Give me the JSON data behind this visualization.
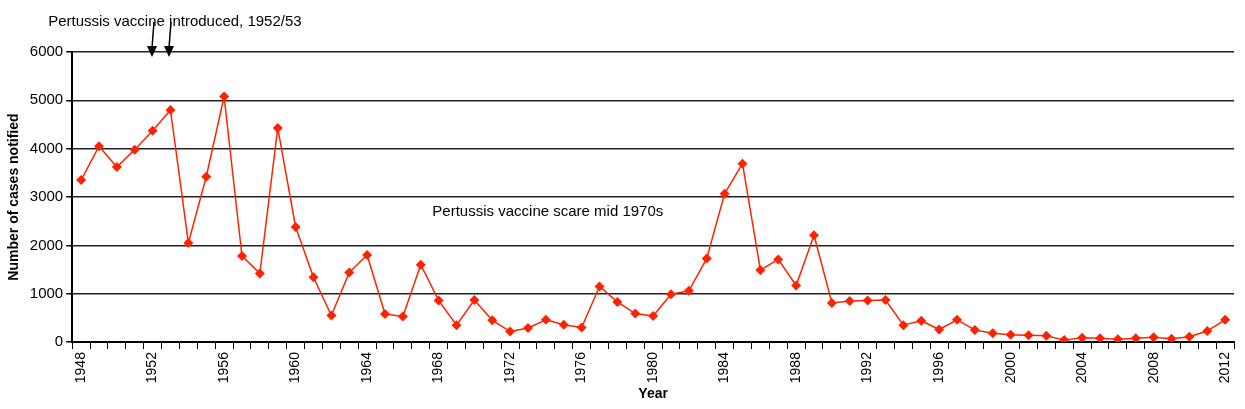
{
  "chart_data": {
    "type": "line",
    "xlabel": "Year",
    "ylabel": "Number of cases notified",
    "categories": [
      "1948",
      null,
      null,
      null,
      "1952",
      null,
      null,
      null,
      "1956",
      null,
      null,
      null,
      "1960",
      null,
      null,
      null,
      "1964",
      null,
      null,
      null,
      "1968",
      null,
      null,
      null,
      "1972",
      null,
      null,
      null,
      "1976",
      null,
      null,
      null,
      "1980",
      null,
      null,
      null,
      "1984",
      null,
      null,
      null,
      "1988",
      null,
      null,
      null,
      "1992",
      null,
      null,
      null,
      "1996",
      null,
      null,
      null,
      "2000",
      null,
      null,
      null,
      "2004",
      null,
      null,
      null,
      "2008",
      null,
      null,
      null,
      "2012"
    ],
    "series": [
      {
        "color": "#ff2200",
        "values": [
          3350,
          4050,
          3620,
          3980,
          4370,
          4800,
          2050,
          3420,
          5080,
          1780,
          1420,
          4430,
          2380,
          1340,
          550,
          1440,
          1800,
          580,
          530,
          1600,
          860,
          350,
          870,
          450,
          220,
          290,
          460,
          360,
          300,
          1150,
          830,
          590,
          540,
          990,
          1060,
          1730,
          3070,
          3690,
          1490,
          1710,
          1170,
          2210,
          810,
          850,
          860,
          870,
          350,
          440,
          260,
          460,
          250,
          180,
          150,
          140,
          130,
          40,
          90,
          80,
          60,
          80,
          100,
          70,
          110,
          230,
          460
        ]
      }
    ],
    "ylim": [
      0,
      6000
    ],
    "yticks": [
      0,
      1000,
      2000,
      3000,
      4000,
      5000,
      6000
    ],
    "grid": "y",
    "marker": "diamond",
    "line_style": "solid",
    "legend": false,
    "annotations": [
      "Pertussis vaccine introduced, 1952/53",
      "Pertussis vaccine scare mid 1970s"
    ]
  }
}
